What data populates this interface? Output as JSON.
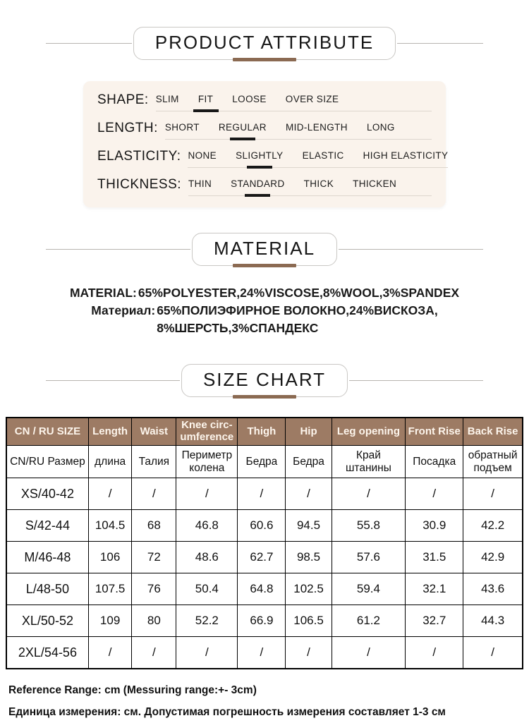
{
  "colors": {
    "accent_brown": "#8b6a52",
    "card_bg": "#faf3ec",
    "table_header_bg": "#9d7b64",
    "table_header_text": "#fdf5ec"
  },
  "product_attribute": {
    "title": "PRODUCT ATTRIBUTE",
    "rows": [
      {
        "label": "SHAPE:",
        "options": [
          "SLIM",
          "FIT",
          "LOOSE",
          "OVER SIZE"
        ],
        "selected": 1
      },
      {
        "label": "LENGTH:",
        "options": [
          "SHORT",
          "REGULAR",
          "MID-LENGTH",
          "LONG"
        ],
        "selected": 1
      },
      {
        "label": "ELASTICITY:",
        "options": [
          "NONE",
          "SLIGHTLY",
          "ELASTIC",
          "HIGH ELASTICITY"
        ],
        "selected": 1
      },
      {
        "label": "THICKNESS:",
        "options": [
          "THIN",
          "STANDARD",
          "THICK",
          "THICKEN"
        ],
        "selected": 1
      }
    ]
  },
  "material": {
    "title": "MATERIAL",
    "en_label": "MATERIAL:",
    "en_text": "65%POLYESTER,24%VISCOSE,8%WOOL,3%SPANDEX",
    "ru_label": "Материал:",
    "ru_text": "65%ПОЛИЭФИРНОЕ ВОЛОКНО,24%ВИСКОЗА,\n8%ШЕРСТЬ,3%СПАНДЕКС"
  },
  "size_chart": {
    "title": "SIZE CHART",
    "col_widths_pct": [
      15.9,
      8.4,
      8.6,
      11.9,
      9.3,
      8.9,
      14.3,
      11.2,
      11.5
    ],
    "header_en": [
      "CN / RU SIZE",
      "Length",
      "Waist",
      "Knee circ-\numference",
      "Thigh",
      "Hip",
      "Leg opening",
      "Front Rise",
      "Back Rise"
    ],
    "header_ru": [
      "CN/RU Размер",
      "длина",
      "Талия",
      "Периметр\nколена",
      "Бедра",
      "Бедра",
      "Край\nштанины",
      "Посадка",
      "обратный\nподъем"
    ],
    "rows": [
      [
        "XS/40-42",
        "/",
        "/",
        "/",
        "/",
        "/",
        "/",
        "/",
        "/"
      ],
      [
        "S/42-44",
        "104.5",
        "68",
        "46.8",
        "60.6",
        "94.5",
        "55.8",
        "30.9",
        "42.2"
      ],
      [
        "M/46-48",
        "106",
        "72",
        "48.6",
        "62.7",
        "98.5",
        "57.6",
        "31.5",
        "42.9"
      ],
      [
        "L/48-50",
        "107.5",
        "76",
        "50.4",
        "64.8",
        "102.5",
        "59.4",
        "32.1",
        "43.6"
      ],
      [
        "XL/50-52",
        "109",
        "80",
        "52.2",
        "66.9",
        "106.5",
        "61.2",
        "32.7",
        "44.3"
      ],
      [
        "2XL/54-56",
        "/",
        "/",
        "/",
        "/",
        "/",
        "/",
        "/",
        "/"
      ]
    ]
  },
  "footnotes": {
    "en": "Reference Range: cm (Messuring range:+- 3cm)",
    "ru": "Единица измерения: см. Допустимая погрешность измерения составляет 1-3 см"
  }
}
